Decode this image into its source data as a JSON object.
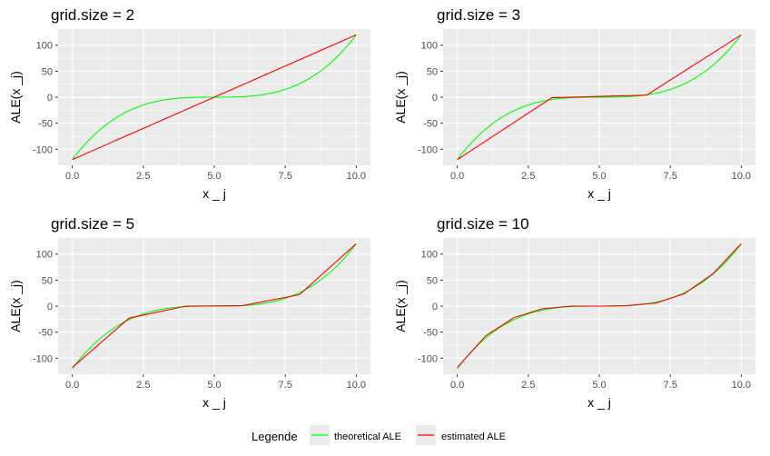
{
  "colors": {
    "panel_background": "#ebebeb",
    "grid_major": "#ffffff",
    "theoretical": "#00ff00",
    "estimated": "#ff0000"
  },
  "legend": {
    "title": "Legende",
    "items": [
      {
        "label": "theoretical ALE",
        "color": "#00ff00"
      },
      {
        "label": "estimated ALE",
        "color": "#ff0000"
      }
    ]
  },
  "chart_data": [
    {
      "type": "line",
      "title": "grid.size = 2",
      "xlabel": "x _ j",
      "ylabel": "ALE(x _j)",
      "xlim": [
        -0.5,
        10.5
      ],
      "ylim": [
        -131,
        131
      ],
      "xticks": [
        0.0,
        2.5,
        5.0,
        7.5,
        10.0
      ],
      "xtick_labels": [
        "0.0",
        "2.5",
        "5.0",
        "7.5",
        "10.0"
      ],
      "yticks": [
        -100,
        -50,
        0,
        50,
        100
      ],
      "ytick_labels": [
        "-100",
        "-50",
        "0",
        "50",
        "100"
      ],
      "series": [
        {
          "name": "theoretical ALE",
          "function": "cubic",
          "center": 5,
          "scale": 0.96
        },
        {
          "name": "estimated ALE",
          "x": [
            0,
            5,
            10
          ],
          "y": [
            -120,
            0,
            120
          ]
        }
      ]
    },
    {
      "type": "line",
      "title": "grid.size = 3",
      "xlabel": "x _ j",
      "ylabel": "ALE(x _j)",
      "xlim": [
        -0.5,
        10.5
      ],
      "ylim": [
        -131,
        131
      ],
      "xticks": [
        0.0,
        2.5,
        5.0,
        7.5,
        10.0
      ],
      "xtick_labels": [
        "0.0",
        "2.5",
        "5.0",
        "7.5",
        "10.0"
      ],
      "yticks": [
        -100,
        -50,
        0,
        50,
        100
      ],
      "ytick_labels": [
        "-100",
        "-50",
        "0",
        "50",
        "100"
      ],
      "series": [
        {
          "name": "theoretical ALE",
          "function": "cubic",
          "center": 5,
          "scale": 0.96
        },
        {
          "name": "estimated ALE",
          "x": [
            0,
            3.33,
            6.67,
            10
          ],
          "y": [
            -120,
            -1,
            4,
            120
          ]
        }
      ]
    },
    {
      "type": "line",
      "title": "grid.size = 5",
      "xlabel": "x _ j",
      "ylabel": "ALE(x _j)",
      "xlim": [
        -0.5,
        10.5
      ],
      "ylim": [
        -131,
        131
      ],
      "xticks": [
        0.0,
        2.5,
        5.0,
        7.5,
        10.0
      ],
      "xtick_labels": [
        "0.0",
        "2.5",
        "5.0",
        "7.5",
        "10.0"
      ],
      "yticks": [
        -100,
        -50,
        0,
        50,
        100
      ],
      "ytick_labels": [
        "-100",
        "-50",
        "0",
        "50",
        "100"
      ],
      "series": [
        {
          "name": "theoretical ALE",
          "function": "cubic",
          "center": 5,
          "scale": 0.96
        },
        {
          "name": "estimated ALE",
          "x": [
            0,
            2,
            4,
            6,
            8,
            10
          ],
          "y": [
            -118,
            -23,
            0,
            1,
            22,
            120
          ]
        }
      ]
    },
    {
      "type": "line",
      "title": "grid.size = 10",
      "xlabel": "x _ j",
      "ylabel": "ALE(x _j)",
      "xlim": [
        -0.5,
        10.5
      ],
      "ylim": [
        -131,
        131
      ],
      "xticks": [
        0.0,
        2.5,
        5.0,
        7.5,
        10.0
      ],
      "xtick_labels": [
        "0.0",
        "2.5",
        "5.0",
        "7.5",
        "10.0"
      ],
      "yticks": [
        -100,
        -50,
        0,
        50,
        100
      ],
      "ytick_labels": [
        "-100",
        "-50",
        "0",
        "50",
        "100"
      ],
      "series": [
        {
          "name": "theoretical ALE",
          "function": "cubic",
          "center": 5,
          "scale": 0.96
        },
        {
          "name": "estimated ALE",
          "x": [
            0,
            1,
            2,
            3,
            4,
            5,
            6,
            7,
            8,
            9,
            10
          ],
          "y": [
            -118,
            -57,
            -22,
            -5,
            0,
            0,
            1,
            6,
            24,
            62,
            120
          ]
        }
      ]
    }
  ]
}
